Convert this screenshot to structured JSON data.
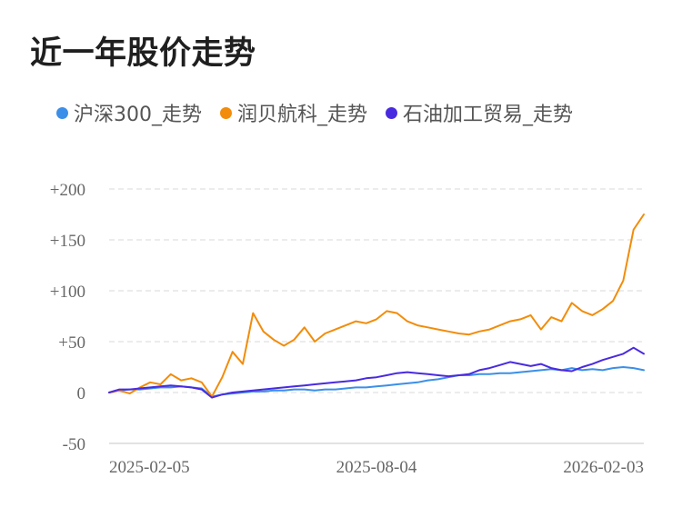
{
  "page": {
    "title": "近一年股价走势"
  },
  "legend": [
    {
      "label": "沪深300_走势",
      "color": "#3b8fe8"
    },
    {
      "label": "润贝航科_走势",
      "color": "#f28c0a"
    },
    {
      "label": "石油加工贸易_走势",
      "color": "#4a2ae0"
    }
  ],
  "chart_data": {
    "type": "line",
    "title": "近一年股价走势",
    "xlabel": "",
    "ylabel": "",
    "ylim": [
      -50,
      200
    ],
    "y_ticks": [
      -50,
      0,
      50,
      100,
      150,
      200
    ],
    "y_tick_labels": [
      "-50",
      "0",
      "+50",
      "+100",
      "+150",
      "+200"
    ],
    "x_range": [
      0,
      52
    ],
    "x_ticks": [
      {
        "x": 0,
        "label": "2025-02-05"
      },
      {
        "x": 26,
        "label": "2025-08-04"
      },
      {
        "x": 52,
        "label": "2026-02-03"
      }
    ],
    "grid": true,
    "series": [
      {
        "name": "沪深300_走势",
        "color": "#3b8fe8",
        "x": [
          0,
          1,
          2,
          3,
          4,
          5,
          6,
          7,
          8,
          9,
          10,
          11,
          12,
          13,
          14,
          15,
          16,
          17,
          18,
          19,
          20,
          21,
          22,
          23,
          24,
          25,
          26,
          27,
          28,
          29,
          30,
          31,
          32,
          33,
          34,
          35,
          36,
          37,
          38,
          39,
          40,
          41,
          42,
          43,
          44,
          45,
          46,
          47,
          48,
          49,
          50,
          51,
          52
        ],
        "values": [
          0,
          2,
          3,
          3,
          4,
          5,
          5,
          6,
          5,
          4,
          -4,
          -2,
          -1,
          0,
          1,
          1,
          2,
          2,
          3,
          3,
          2,
          3,
          3,
          4,
          5,
          5,
          6,
          7,
          8,
          9,
          10,
          12,
          13,
          15,
          17,
          17,
          18,
          18,
          19,
          19,
          20,
          21,
          22,
          23,
          22,
          24,
          22,
          23,
          22,
          24,
          25,
          24,
          22
        ]
      },
      {
        "name": "润贝航科_走势",
        "color": "#f28c0a",
        "x": [
          0,
          1,
          2,
          3,
          4,
          5,
          6,
          7,
          8,
          9,
          10,
          11,
          12,
          13,
          14,
          15,
          16,
          17,
          18,
          19,
          20,
          21,
          22,
          23,
          24,
          25,
          26,
          27,
          28,
          29,
          30,
          31,
          32,
          33,
          34,
          35,
          36,
          37,
          38,
          39,
          40,
          41,
          42,
          43,
          44,
          45,
          46,
          47,
          48,
          49,
          50,
          51,
          52
        ],
        "values": [
          0,
          2,
          -1,
          5,
          10,
          8,
          18,
          12,
          14,
          10,
          -4,
          15,
          40,
          28,
          78,
          60,
          52,
          46,
          52,
          64,
          50,
          58,
          62,
          66,
          70,
          68,
          72,
          80,
          78,
          70,
          66,
          64,
          62,
          60,
          58,
          57,
          60,
          62,
          66,
          70,
          72,
          76,
          62,
          74,
          70,
          88,
          80,
          76,
          82,
          90,
          110,
          160,
          175
        ]
      },
      {
        "name": "石油加工贸易_走势",
        "color": "#4a2ae0",
        "x": [
          0,
          1,
          2,
          3,
          4,
          5,
          6,
          7,
          8,
          9,
          10,
          11,
          12,
          13,
          14,
          15,
          16,
          17,
          18,
          19,
          20,
          21,
          22,
          23,
          24,
          25,
          26,
          27,
          28,
          29,
          30,
          31,
          32,
          33,
          34,
          35,
          36,
          37,
          38,
          39,
          40,
          41,
          42,
          43,
          44,
          45,
          46,
          47,
          48,
          49,
          50,
          51,
          52
        ],
        "values": [
          0,
          3,
          3,
          4,
          5,
          6,
          7,
          6,
          5,
          3,
          -5,
          -2,
          0,
          1,
          2,
          3,
          4,
          5,
          6,
          7,
          8,
          9,
          10,
          11,
          12,
          14,
          15,
          17,
          19,
          20,
          19,
          18,
          17,
          16,
          17,
          18,
          22,
          24,
          27,
          30,
          28,
          26,
          28,
          24,
          22,
          21,
          25,
          28,
          32,
          35,
          38,
          44,
          38
        ]
      }
    ]
  }
}
